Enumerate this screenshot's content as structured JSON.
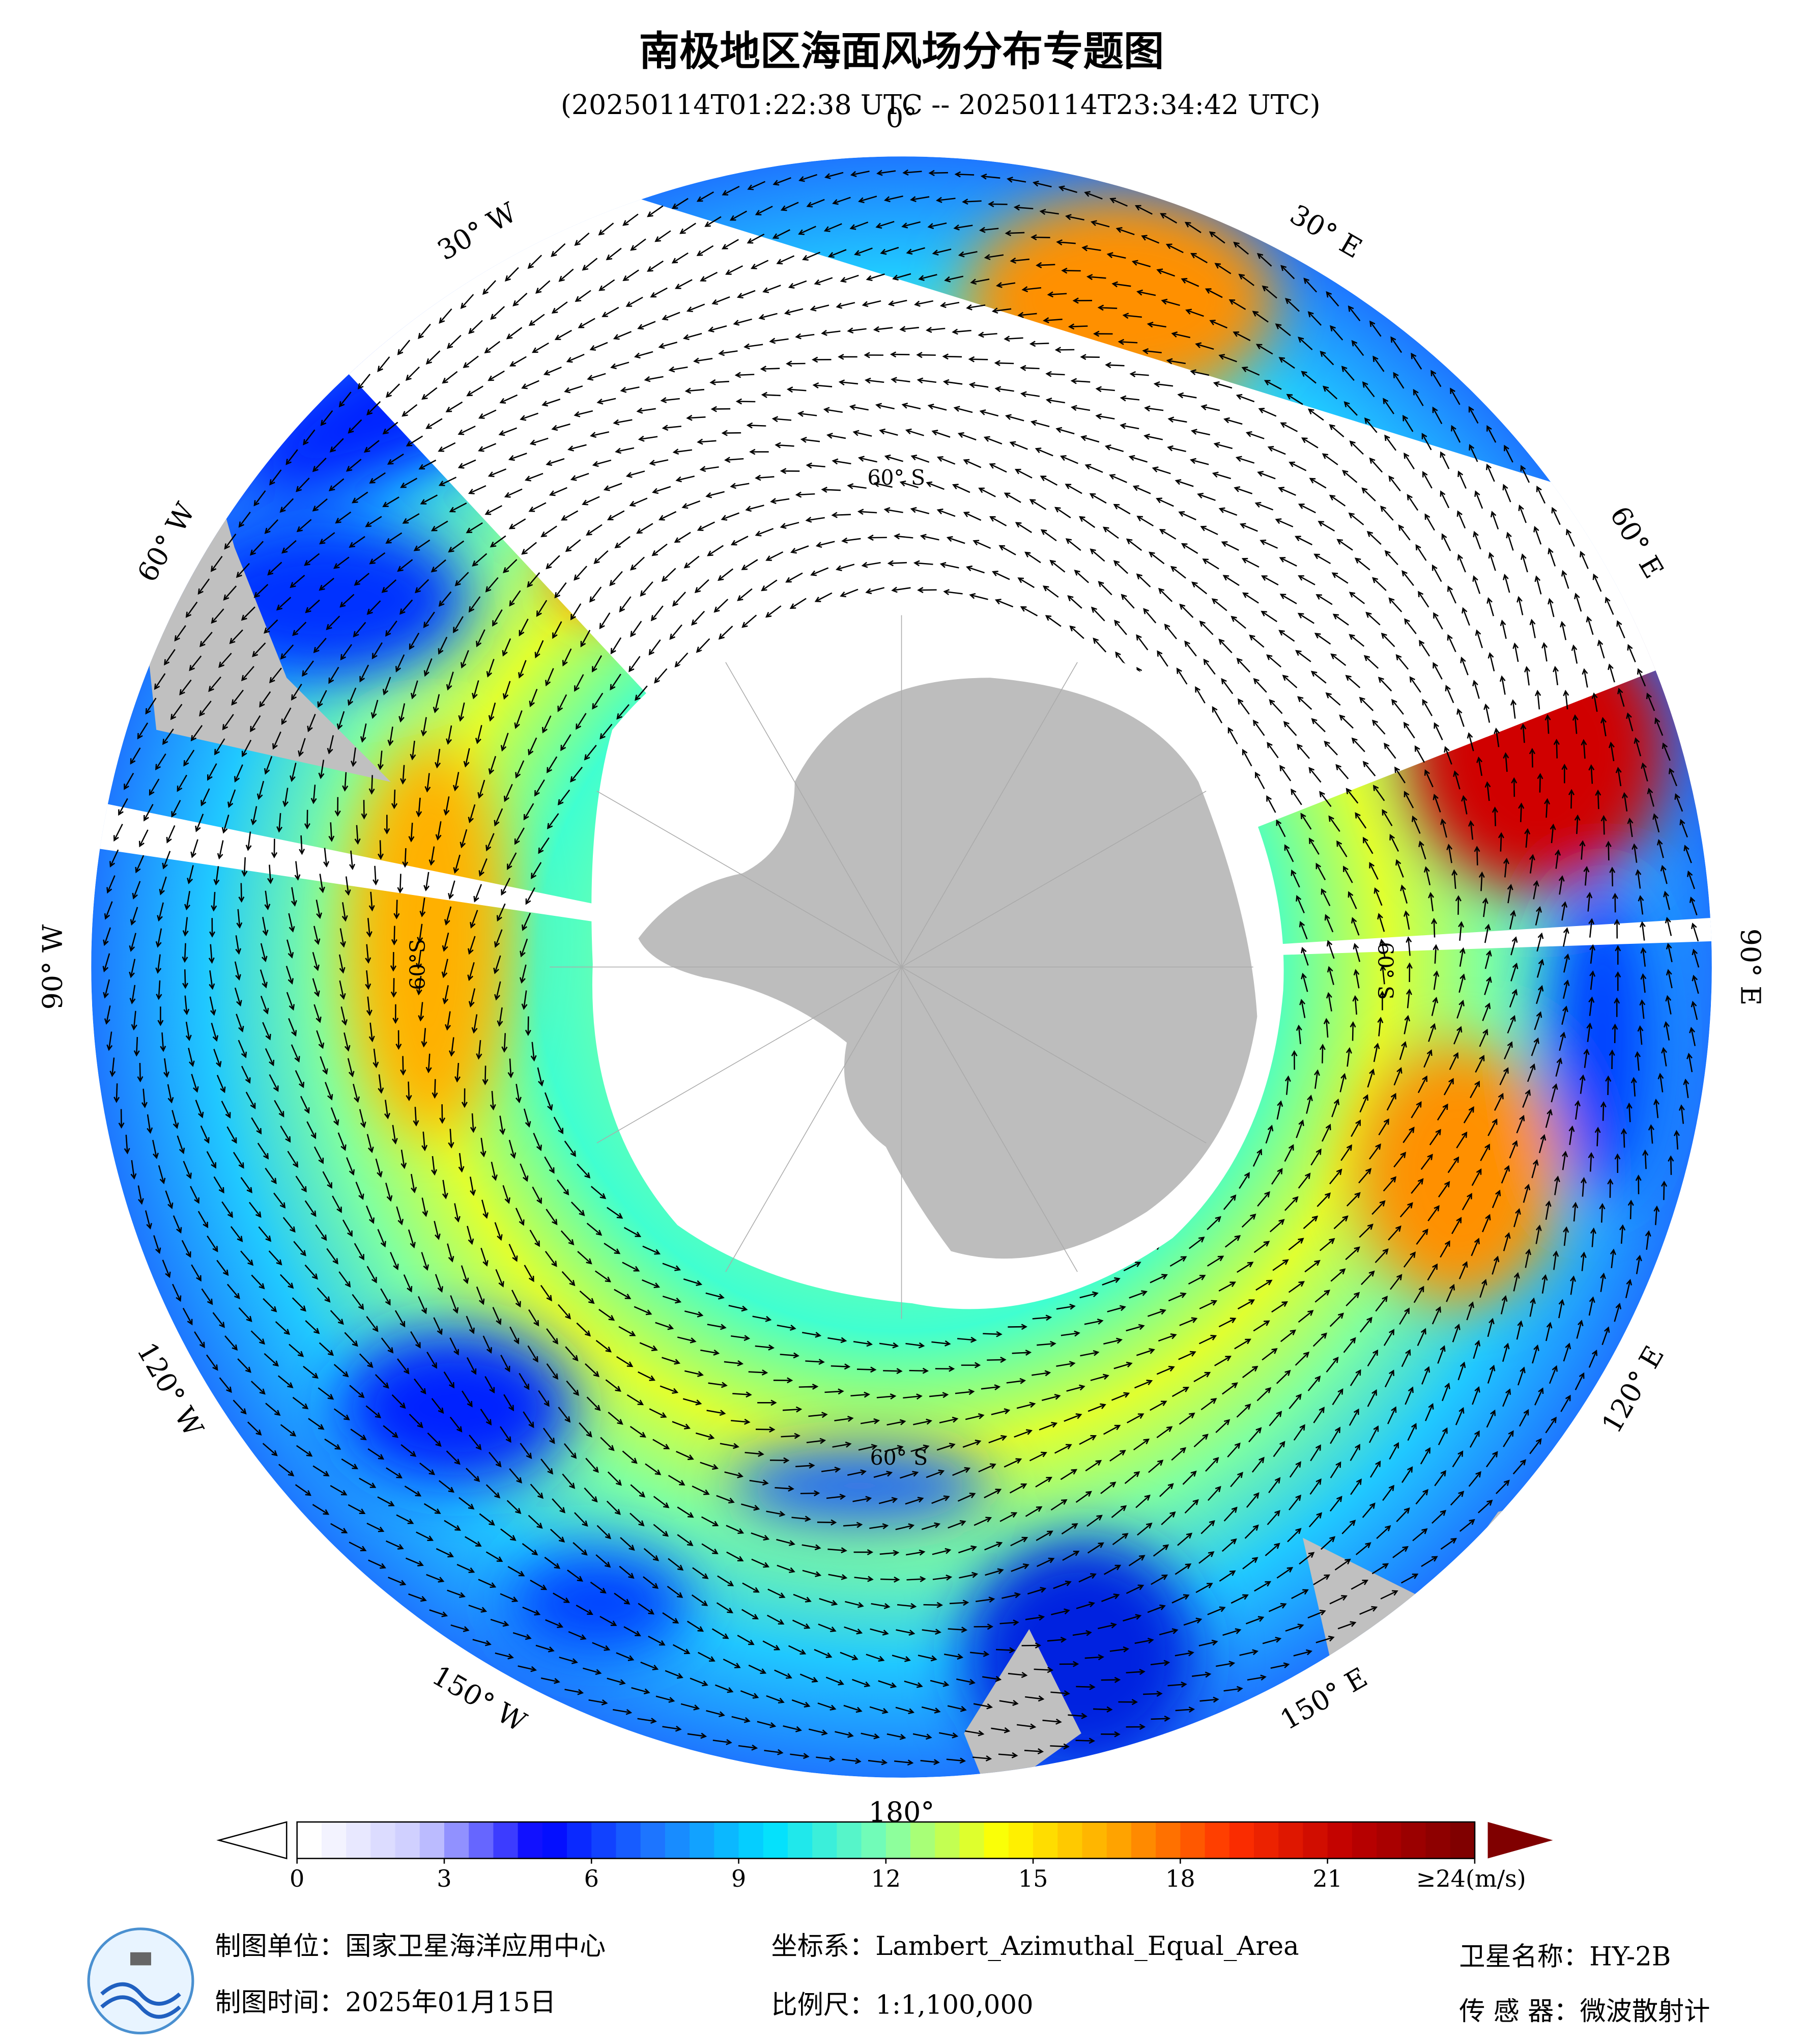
{
  "header": {
    "title": "南极地区海面风场分布专题图",
    "subtitle": "(20250114T01:22:38 UTC -- 20250114T23:34:42 UTC)"
  },
  "map": {
    "longitude_labels": [
      "0°",
      "30° E",
      "60° E",
      "90° E",
      "120° E",
      "150° E",
      "180°",
      "150° W",
      "120° W",
      "90° W",
      "60° W",
      "30° W"
    ],
    "latitude_labels": [
      "60° S",
      "60° S",
      "60° S",
      "60°S"
    ]
  },
  "colorbar": {
    "range": [
      0,
      24
    ],
    "ticks": [
      0,
      3,
      6,
      9,
      12,
      15,
      18,
      21,
      {
        "value": 24,
        "label": "≥24(m/s)"
      }
    ],
    "colors": [
      "#ffffff",
      "#c8c8ff",
      "#0000ff",
      "#1e78ff",
      "#00e0ff",
      "#7fffaf",
      "#ffff00",
      "#ffa500",
      "#ff3000",
      "#c00000",
      "#800000"
    ]
  },
  "footer": {
    "unit": "制图单位：国家卫星海洋应用中心",
    "date": "制图时间：2025年01月15日",
    "crs": "坐标系：Lambert_Azimuthal_Equal_Area",
    "scale": "比例尺：1:1,100,000",
    "satellite": "卫星名称：HY-2B",
    "sensor": "传 感 器：微波散射计"
  }
}
